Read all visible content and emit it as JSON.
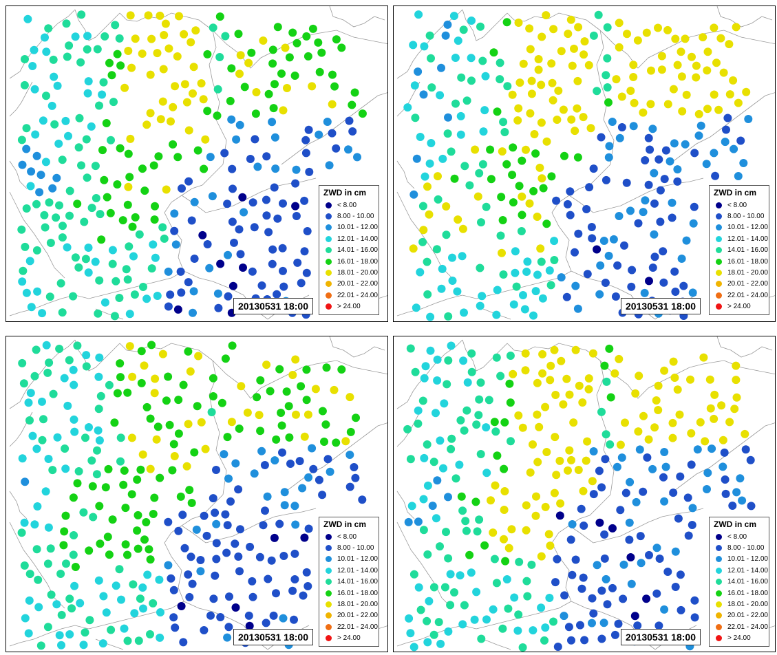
{
  "legend": {
    "title": "ZWD in cm",
    "classes": [
      {
        "label": "< 8.00",
        "color": "#00008b"
      },
      {
        "label": "8.00 - 10.00",
        "color": "#1f4fc8"
      },
      {
        "label": "10.01 - 12.00",
        "color": "#1f8fdc"
      },
      {
        "label": "12.01 - 14.00",
        "color": "#22d4dc"
      },
      {
        "label": "14.01 - 16.00",
        "color": "#1fdc9a"
      },
      {
        "label": "16.01 - 18.00",
        "color": "#14d214"
      },
      {
        "label": "18.01 - 20.00",
        "color": "#e8e000"
      },
      {
        "label": "20.01 - 22.00",
        "color": "#f0b400"
      },
      {
        "label": "22.01 - 24.00",
        "color": "#f06e14"
      },
      {
        "label": "> 24.00",
        "color": "#f01414"
      }
    ]
  },
  "panels": [
    {
      "timestamp": "20130531 18:00",
      "variant": "a"
    },
    {
      "timestamp": "20130531 18:00",
      "variant": "b"
    },
    {
      "timestamp": "20130531 18:00",
      "variant": "c"
    },
    {
      "timestamp": "20130531 18:00",
      "variant": "d"
    }
  ]
}
